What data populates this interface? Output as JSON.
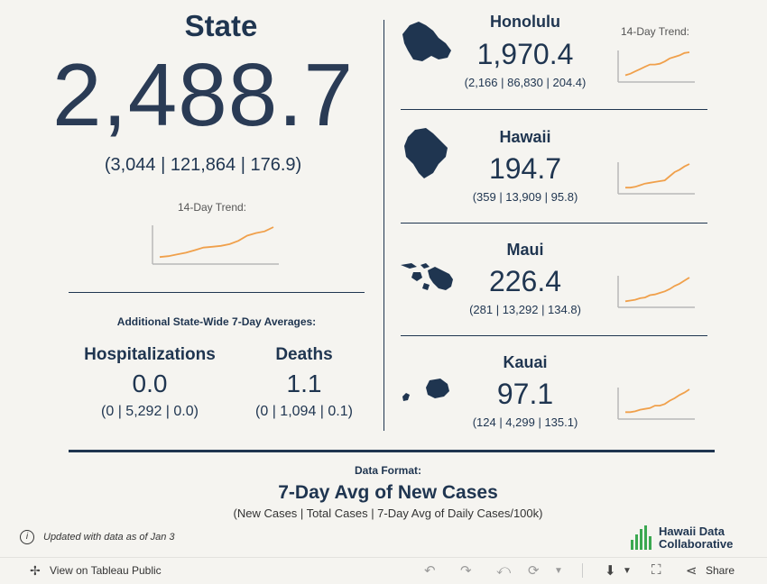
{
  "state": {
    "title": "State",
    "value": "2,488.7",
    "sub": "(3,044 | 121,864 | 176.9)",
    "trend_label": "14-Day Trend:",
    "trend": [
      3,
      4,
      6,
      8,
      11,
      14,
      15,
      16,
      18,
      22,
      28,
      31,
      33,
      38
    ]
  },
  "averages": {
    "title": "Additional State-Wide 7-Day Averages:",
    "hospitalizations": {
      "title": "Hospitalizations",
      "value": "0.0",
      "sub": "(0 | 5,292 | 0.0)"
    },
    "deaths": {
      "title": "Deaths",
      "value": "1.1",
      "sub": "(0 | 1,094 | 0.1)"
    }
  },
  "county_trend_label": "14-Day Trend:",
  "counties": [
    {
      "name": "Honolulu",
      "value": "1,970.4",
      "sub": "(2,166 | 86,830 | 204.4)",
      "trend": [
        3,
        5,
        8,
        11,
        14,
        17,
        17,
        18,
        21,
        25,
        27,
        29,
        32,
        33
      ]
    },
    {
      "name": "Hawaii",
      "value": "194.7",
      "sub": "(359 | 13,909 | 95.8)",
      "trend": [
        2,
        2,
        3,
        5,
        7,
        8,
        9,
        10,
        11,
        16,
        21,
        24,
        28,
        31
      ]
    },
    {
      "name": "Maui",
      "value": "226.4",
      "sub": "(281 | 13,292 | 134.8)",
      "trend": [
        2,
        3,
        4,
        6,
        7,
        10,
        11,
        13,
        15,
        18,
        22,
        25,
        29,
        33
      ]
    },
    {
      "name": "Kauai",
      "value": "97.1",
      "sub": "(124 | 4,299 | 135.1)",
      "trend": [
        3,
        3,
        4,
        6,
        7,
        8,
        11,
        11,
        13,
        17,
        20,
        24,
        27,
        31
      ]
    }
  ],
  "format": {
    "label": "Data Format:",
    "title": "7-Day Avg of New Cases",
    "sub": "(New Cases | Total Cases | 7-Day Avg of Daily Cases/100k)"
  },
  "updated": "Updated with data as of Jan 3",
  "logo": {
    "line1": "Hawaii Data",
    "line2": "Collaborative"
  },
  "toolbar": {
    "view_label": "View on Tableau Public",
    "share_label": "Share"
  },
  "colors": {
    "navy": "#1f3550",
    "trend_line": "#f0a04b",
    "axis": "#b8b8b8",
    "logo_green": "#3aa850"
  }
}
